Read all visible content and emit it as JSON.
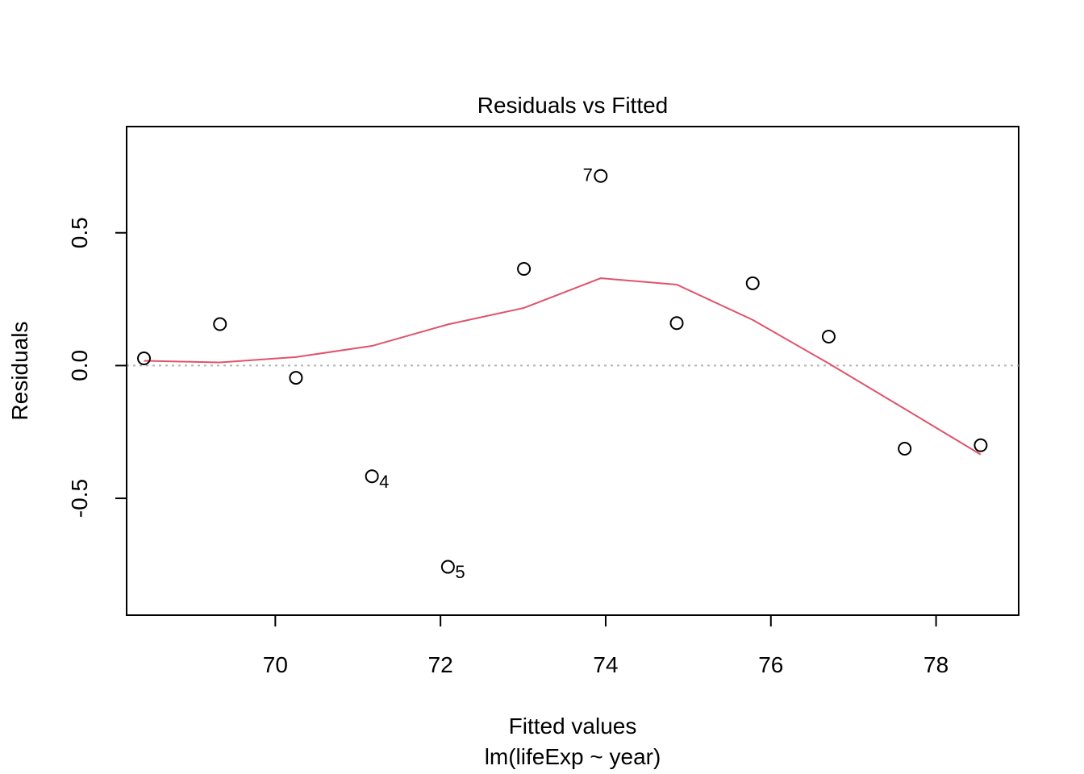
{
  "chart_data": {
    "type": "scatter",
    "title": "Residuals vs Fitted",
    "xlabel": "Fitted values",
    "subtitle": "lm(lifeExp ~ year)",
    "ylabel": "Residuals",
    "xlim": [
      68.2,
      79.0
    ],
    "ylim": [
      -0.94,
      0.9
    ],
    "xticks": [
      70,
      72,
      74,
      76,
      78
    ],
    "xtick_labels": [
      "70",
      "72",
      "74",
      "76",
      "78"
    ],
    "yticks": [
      -0.5,
      0.0,
      0.5
    ],
    "ytick_labels": [
      "-0.5",
      "0.0",
      "0.5"
    ],
    "grid": false,
    "reference_line": {
      "y": 0.0,
      "style": "dotted",
      "color": "#b3b3b3"
    },
    "points": [
      {
        "x": 68.41,
        "y": 0.027,
        "label": ""
      },
      {
        "x": 69.33,
        "y": 0.156,
        "label": ""
      },
      {
        "x": 70.25,
        "y": -0.046,
        "label": ""
      },
      {
        "x": 71.17,
        "y": -0.417,
        "label": "4"
      },
      {
        "x": 72.09,
        "y": -0.758,
        "label": "5"
      },
      {
        "x": 73.01,
        "y": 0.364,
        "label": ""
      },
      {
        "x": 73.94,
        "y": 0.714,
        "label": "7"
      },
      {
        "x": 74.86,
        "y": 0.16,
        "label": ""
      },
      {
        "x": 75.78,
        "y": 0.31,
        "label": ""
      },
      {
        "x": 76.7,
        "y": 0.109,
        "label": ""
      },
      {
        "x": 77.62,
        "y": -0.313,
        "label": ""
      },
      {
        "x": 78.54,
        "y": -0.3,
        "label": ""
      }
    ],
    "smooth_line": {
      "color": "#DF536B",
      "x": [
        68.41,
        69.33,
        70.25,
        71.17,
        72.09,
        73.01,
        73.94,
        74.86,
        75.78,
        76.7,
        77.62,
        78.54
      ],
      "y": [
        0.018,
        0.012,
        0.032,
        0.074,
        0.155,
        0.217,
        0.329,
        0.305,
        0.172,
        0.008,
        -0.163,
        -0.335
      ]
    }
  }
}
